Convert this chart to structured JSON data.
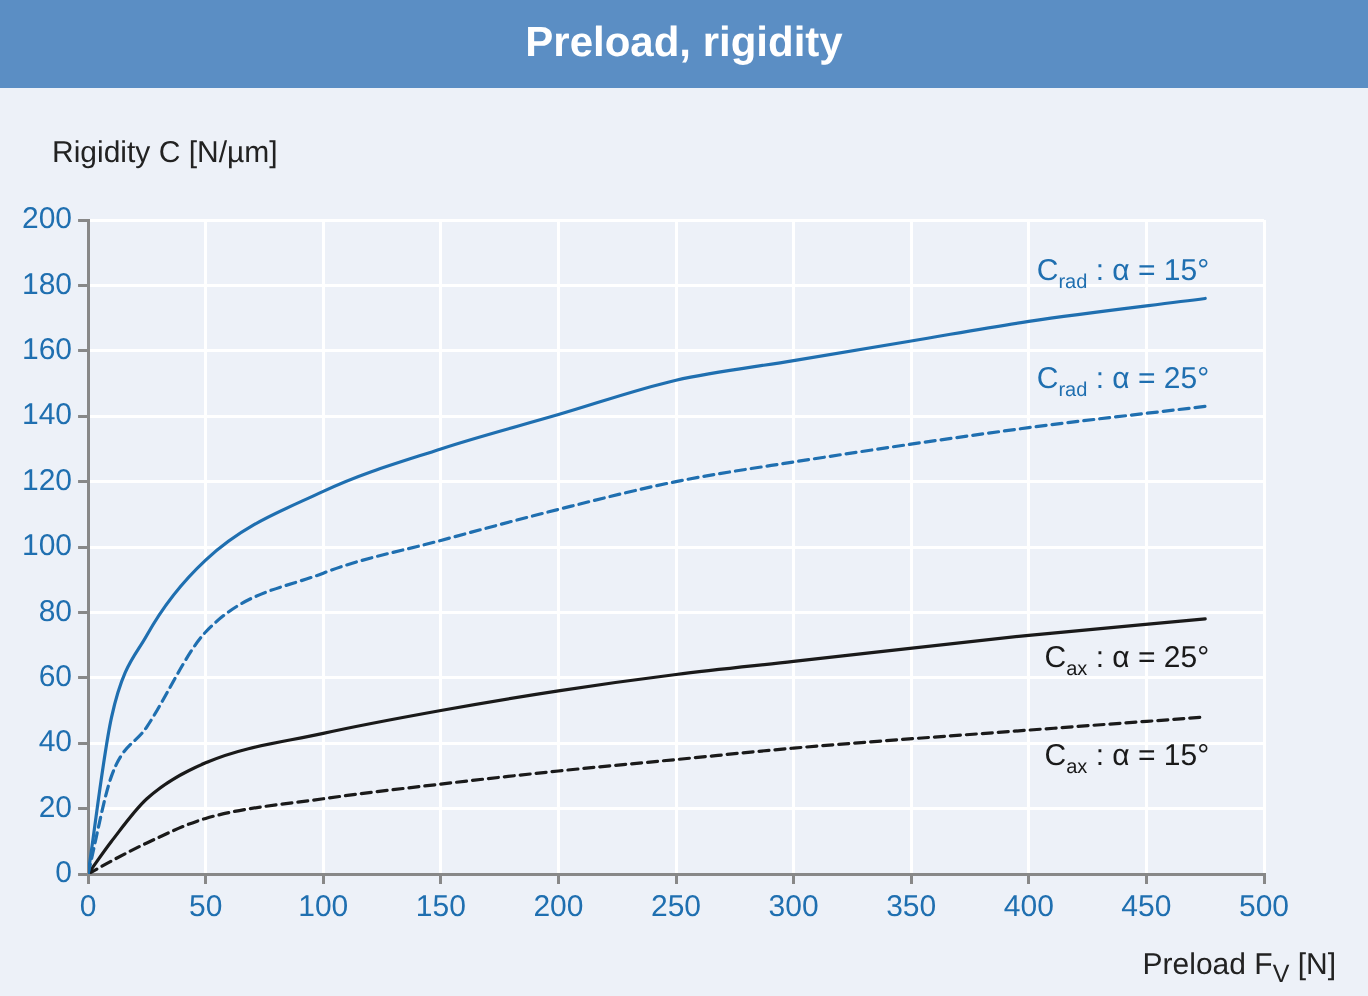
{
  "chart_data": {
    "type": "line",
    "title": "Preload, rigidity",
    "xlabel": "Preload F$_{V}$ [N]",
    "ylabel": "Rigidity C [N/µm]",
    "xlim": [
      0,
      500
    ],
    "xticks": [
      0,
      50,
      100,
      150,
      200,
      250,
      300,
      350,
      400,
      450,
      500
    ],
    "ylim": [
      0,
      200
    ],
    "yticks": [
      0,
      20,
      40,
      60,
      80,
      100,
      120,
      140,
      160,
      180,
      200
    ],
    "grid": true,
    "legend": false,
    "marker": "none",
    "series": [
      {
        "name": "C$_{rad}$ : α = 15°",
        "color": "#1f6fb0",
        "line_style": "solid",
        "x": [
          0,
          10,
          25,
          50,
          100,
          150,
          200,
          250,
          300,
          350,
          400,
          475
        ],
        "values": [
          0,
          48,
          73,
          96,
          117,
          130,
          140.5,
          151,
          157,
          163,
          169,
          176
        ]
      },
      {
        "name": "C$_{rad}$ : α = 25°",
        "color": "#1f6fb0",
        "line_style": "dashed",
        "x": [
          0,
          10,
          25,
          50,
          100,
          150,
          200,
          250,
          300,
          400,
          475
        ],
        "values": [
          0,
          30,
          45,
          74,
          92,
          102,
          111.5,
          120,
          126,
          136.5,
          143
        ]
      },
      {
        "name": "C$_{ax}$ : α = 25°",
        "color": "#1a1a1a",
        "line_style": "solid",
        "x": [
          0,
          10,
          25,
          50,
          100,
          150,
          200,
          250,
          300,
          400,
          475
        ],
        "values": [
          0,
          10,
          23,
          34,
          43,
          50,
          56,
          61,
          65,
          73,
          78
        ]
      },
      {
        "name": "C$_{ax}$ : α = 15°",
        "color": "#1a1a1a",
        "line_style": "dashed",
        "x": [
          0,
          10,
          25,
          50,
          100,
          150,
          200,
          250,
          300,
          400,
          475
        ],
        "values": [
          0,
          4,
          9.5,
          17,
          23,
          27.5,
          31.5,
          35,
          38.5,
          44,
          48
        ]
      }
    ]
  }
}
